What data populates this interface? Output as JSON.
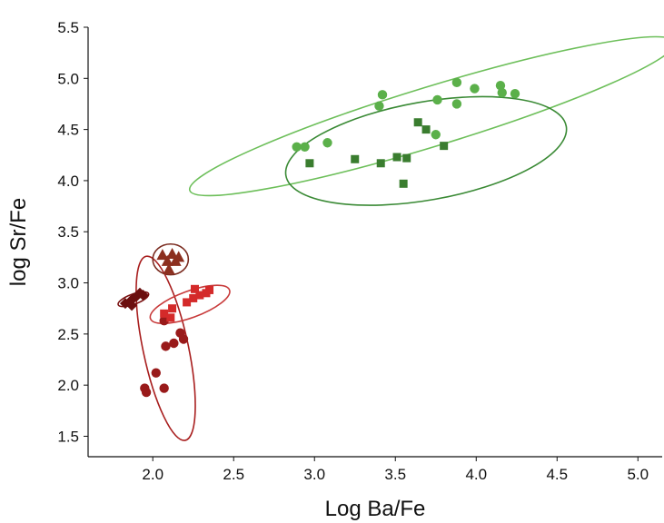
{
  "chart_data": {
    "type": "scatter",
    "title": "",
    "xlabel": "Log Ba/Fe",
    "ylabel": "log Sr/Fe",
    "xlim": [
      1.6,
      5.15
    ],
    "ylim": [
      1.3,
      5.5
    ],
    "xticks": [
      "2.0",
      "2.5",
      "3.0",
      "3.5",
      "4.0",
      "4.5",
      "5.0"
    ],
    "yticks": [
      "1.5",
      "2.0",
      "2.5",
      "3.0",
      "3.5",
      "4.0",
      "4.5",
      "5.0",
      "5.5"
    ],
    "grid": false,
    "legend": "none",
    "series": [
      {
        "marker": "circle",
        "color": "#5bb04a",
        "points": [
          [
            2.89,
            4.33
          ],
          [
            2.94,
            4.33
          ],
          [
            3.08,
            4.37
          ],
          [
            3.4,
            4.73
          ],
          [
            3.42,
            4.84
          ],
          [
            3.76,
            4.79
          ],
          [
            3.75,
            4.45
          ],
          [
            3.88,
            4.96
          ],
          [
            3.88,
            4.75
          ],
          [
            3.99,
            4.9
          ],
          [
            4.15,
            4.93
          ],
          [
            4.16,
            4.86
          ],
          [
            4.24,
            4.85
          ]
        ]
      },
      {
        "marker": "square",
        "color": "#3a7d2f",
        "points": [
          [
            2.97,
            4.17
          ],
          [
            3.25,
            4.21
          ],
          [
            3.41,
            4.17
          ],
          [
            3.51,
            4.23
          ],
          [
            3.57,
            4.22
          ],
          [
            3.55,
            3.97
          ],
          [
            3.64,
            4.57
          ],
          [
            3.69,
            4.5
          ],
          [
            3.8,
            4.34
          ]
        ]
      },
      {
        "marker": "circle",
        "color": "#991a1a",
        "points": [
          [
            1.95,
            1.97
          ],
          [
            1.96,
            1.93
          ],
          [
            2.02,
            2.12
          ],
          [
            2.07,
            1.97
          ],
          [
            2.07,
            2.63
          ],
          [
            2.08,
            2.38
          ],
          [
            2.13,
            2.41
          ],
          [
            2.17,
            2.51
          ],
          [
            2.19,
            2.45
          ]
        ]
      },
      {
        "marker": "square",
        "color": "#d42a2a",
        "points": [
          [
            2.07,
            2.7
          ],
          [
            2.12,
            2.75
          ],
          [
            2.21,
            2.81
          ],
          [
            2.25,
            2.85
          ],
          [
            2.26,
            2.94
          ],
          [
            2.29,
            2.88
          ],
          [
            2.33,
            2.9
          ],
          [
            2.35,
            2.93
          ],
          [
            2.11,
            2.66
          ]
        ]
      },
      {
        "marker": "triangle",
        "color": "#8c2f1f",
        "points": [
          [
            2.06,
            3.27
          ],
          [
            2.09,
            3.21
          ],
          [
            2.12,
            3.28
          ],
          [
            2.14,
            3.21
          ],
          [
            2.1,
            3.13
          ],
          [
            2.16,
            3.25
          ]
        ]
      },
      {
        "marker": "diamond",
        "color": "#6b0f0f",
        "points": [
          [
            1.83,
            2.8
          ],
          [
            1.86,
            2.82
          ],
          [
            1.88,
            2.85
          ],
          [
            1.9,
            2.87
          ],
          [
            1.92,
            2.9
          ],
          [
            1.94,
            2.88
          ],
          [
            1.87,
            2.78
          ]
        ]
      }
    ],
    "ellipses": [
      {
        "color": "#6dbf5a",
        "center": [
          3.73,
          4.63
        ],
        "rx": 1.57,
        "ry": 0.29,
        "angle_deg": 17
      },
      {
        "color": "#3a8a35",
        "center": [
          3.69,
          4.29
        ],
        "rx": 0.88,
        "ry": 0.48,
        "angle_deg": 10
      },
      {
        "color": "#a81e1e",
        "center": [
          2.08,
          2.36
        ],
        "rx": 0.14,
        "ry": 0.92,
        "angle_deg": 12
      },
      {
        "color": "#c83a3a",
        "center": [
          2.23,
          2.79
        ],
        "rx": 0.26,
        "ry": 0.13,
        "angle_deg": 20
      },
      {
        "color": "#7a2a1e",
        "center": [
          2.11,
          3.23
        ],
        "rx": 0.11,
        "ry": 0.15,
        "angle_deg": 0
      },
      {
        "color": "#7a1010",
        "center": [
          1.88,
          2.84
        ],
        "rx": 0.1,
        "ry": 0.05,
        "angle_deg": 20
      }
    ]
  }
}
